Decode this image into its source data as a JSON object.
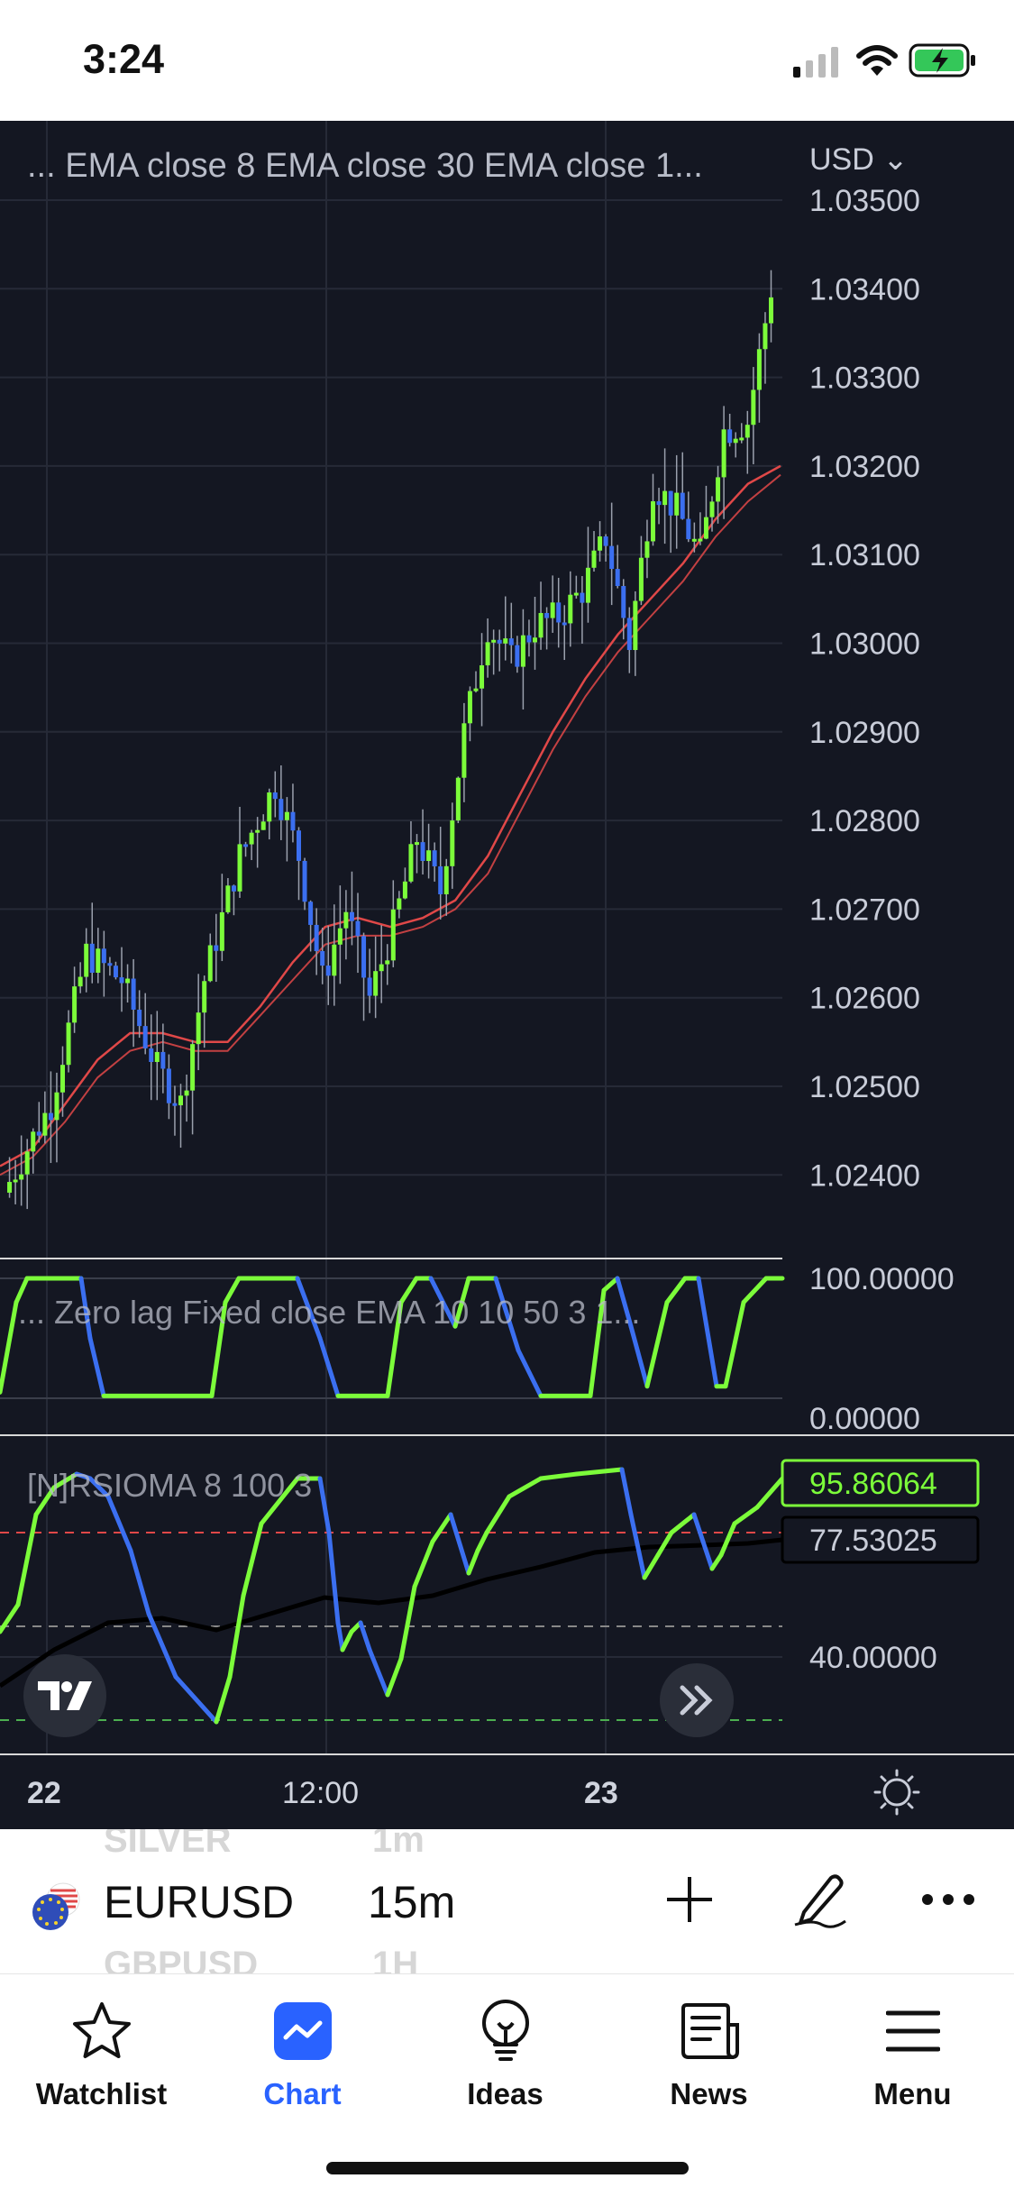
{
  "status_bar": {
    "time": "3:24"
  },
  "chart": {
    "currency": "USD",
    "main_legend": "...  EMA close 8 EMA close 30 EMA close 1...",
    "price_ticks": [
      "1.03500",
      "1.03400",
      "1.03300",
      "1.03200",
      "1.03100",
      "1.03000",
      "1.02900",
      "1.02800",
      "1.02700",
      "1.02600",
      "1.02500",
      "1.02400"
    ],
    "osc1_legend": "...  Zero lag Fixed close EMA 10 10 50 3 1...",
    "osc1_ticks": [
      "100.00000",
      "0.00000"
    ],
    "osc2_legend": "[N]RSIOMA 8 100 3",
    "osc2_value_green": "95.86064",
    "osc2_value_black": "77.53025",
    "osc2_tick": "40.00000",
    "time_labels": [
      "22",
      "12:00",
      "23"
    ],
    "colors": {
      "background": "#141722",
      "up": "#7cfc3a",
      "down": "#3b6ff0",
      "ema": "#e04848",
      "accent": "#2962ff"
    }
  },
  "chart_data": {
    "type": "line",
    "title": "",
    "xlabel": "",
    "ylabel": "",
    "ylim": [
      1.0236,
      1.0356
    ],
    "series": [
      {
        "name": "EMA close 8",
        "values": [
          1.0241,
          1.0243,
          1.0248,
          1.0253,
          1.0256,
          1.0256,
          1.0255,
          1.0255,
          1.0259,
          1.0264,
          1.0268,
          1.0269,
          1.0268,
          1.0269,
          1.0271,
          1.0276,
          1.0283,
          1.029,
          1.0296,
          1.0301,
          1.0305,
          1.0309,
          1.0314,
          1.0318,
          1.032
        ]
      },
      {
        "name": "EMA close 30",
        "values": [
          1.024,
          1.0242,
          1.0246,
          1.0251,
          1.0254,
          1.0255,
          1.0254,
          1.0254,
          1.0258,
          1.0262,
          1.0266,
          1.0267,
          1.0267,
          1.0268,
          1.027,
          1.0274,
          1.0281,
          1.0288,
          1.0294,
          1.0299,
          1.0303,
          1.0307,
          1.0312,
          1.0316,
          1.0319
        ]
      }
    ]
  },
  "symbol_bar": {
    "symbol": "EURUSD",
    "interval": "15m",
    "ghost_above_symbol": "SILVER",
    "ghost_above_interval": "1m",
    "ghost_below_symbol": "GBPUSD",
    "ghost_below_interval": "1H"
  },
  "tabs": [
    {
      "label": "Watchlist",
      "icon": "star-icon"
    },
    {
      "label": "Chart",
      "icon": "chart-icon"
    },
    {
      "label": "Ideas",
      "icon": "lightbulb-icon"
    },
    {
      "label": "News",
      "icon": "news-icon"
    },
    {
      "label": "Menu",
      "icon": "hamburger-icon"
    }
  ]
}
